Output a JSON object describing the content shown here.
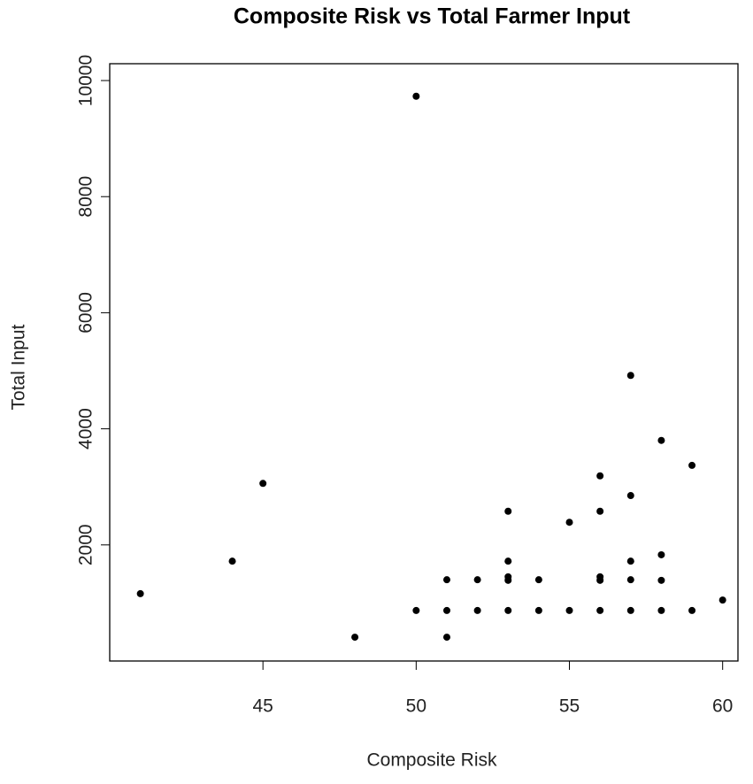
{
  "chart_data": {
    "type": "scatter",
    "title": "Composite Risk vs Total Farmer Input",
    "x_label": "Composite Risk",
    "y_label": "Total Input",
    "series": [
      {
        "color": "#000000",
        "x": [
          41,
          44,
          45,
          48,
          50,
          50,
          51,
          51,
          51,
          52,
          52,
          53,
          53,
          53,
          53,
          53,
          54,
          54,
          55,
          55,
          56,
          56,
          56,
          56,
          56,
          57,
          57,
          57,
          57,
          57,
          58,
          58,
          58,
          58,
          59,
          59,
          60
        ],
        "values": [
          1160,
          1720,
          3060,
          410,
          9730,
          870,
          1400,
          870,
          410,
          1400,
          870,
          2580,
          1720,
          1450,
          1390,
          870,
          1400,
          870,
          2390,
          870,
          3190,
          2580,
          1450,
          1390,
          870,
          4920,
          2850,
          1720,
          1400,
          870,
          3800,
          1830,
          1390,
          870,
          3370,
          870,
          1050
        ]
      }
    ],
    "xlim": [
      40,
      60.5
    ],
    "ylim": [
      0,
      10290
    ],
    "xticks": [
      45,
      50,
      55,
      60
    ],
    "yticks": [
      2000,
      4000,
      6000,
      8000,
      10000
    ],
    "grid": false
  }
}
